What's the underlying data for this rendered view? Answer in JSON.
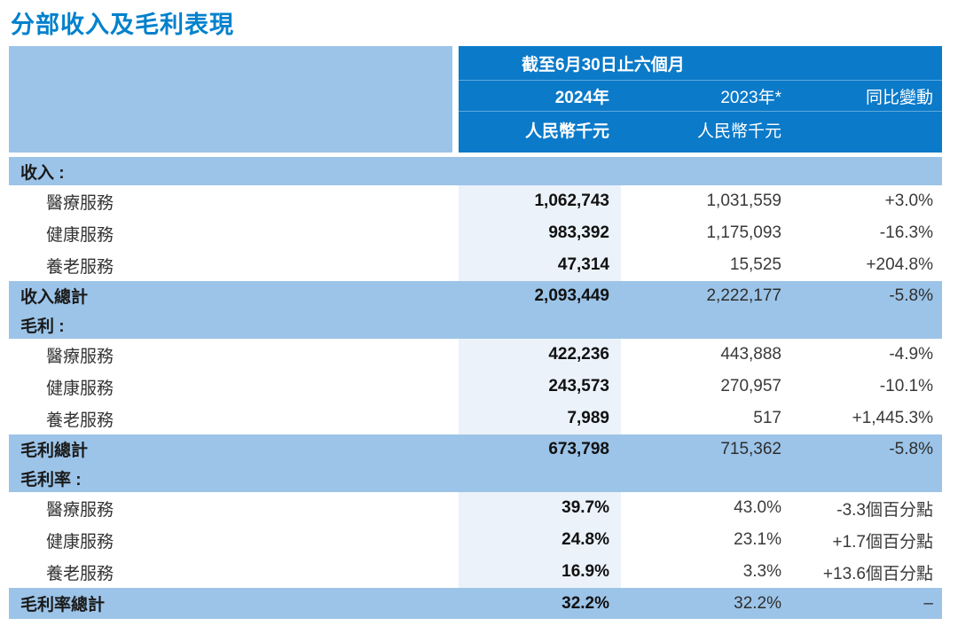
{
  "page": {
    "title": "分部收入及毛利表現"
  },
  "colors": {
    "title_blue": "#0081cc",
    "header_dark_blue": "#0b7ac9",
    "band_light_blue": "#9cc4e8",
    "column_tint": "#ebf2fa"
  },
  "table": {
    "header": {
      "period": "截至6月30日止六個月",
      "col_2024_year": "2024年",
      "col_2024_unit": "人民幣千元",
      "col_2023_year": "2023年*",
      "col_2023_unit": "人民幣千元",
      "col_change_label": "同比變動"
    },
    "rows": [
      {
        "type": "section",
        "label": "收入 :",
        "v2024": "",
        "v2023": "",
        "change": ""
      },
      {
        "type": "item",
        "label": "醫療服務",
        "v2024": "1,062,743",
        "v2023": "1,031,559",
        "change": "+3.0%"
      },
      {
        "type": "item",
        "label": "健康服務",
        "v2024": "983,392",
        "v2023": "1,175,093",
        "change": "-16.3%"
      },
      {
        "type": "item",
        "label": "養老服務",
        "v2024": "47,314",
        "v2023": "15,525",
        "change": "+204.8%"
      },
      {
        "type": "total",
        "label": "收入總計",
        "v2024": "2,093,449",
        "v2023": "2,222,177",
        "change": "-5.8%"
      },
      {
        "type": "section",
        "label": "毛利 :",
        "v2024": "",
        "v2023": "",
        "change": ""
      },
      {
        "type": "item",
        "label": "醫療服務",
        "v2024": "422,236",
        "v2023": "443,888",
        "change": "-4.9%"
      },
      {
        "type": "item",
        "label": "健康服務",
        "v2024": "243,573",
        "v2023": "270,957",
        "change": "-10.1%"
      },
      {
        "type": "item",
        "label": "養老服務",
        "v2024": "7,989",
        "v2023": "517",
        "change": "+1,445.3%"
      },
      {
        "type": "total",
        "label": "毛利總計",
        "v2024": "673,798",
        "v2023": "715,362",
        "change": "-5.8%"
      },
      {
        "type": "section",
        "label": "毛利率 :",
        "v2024": "",
        "v2023": "",
        "change": ""
      },
      {
        "type": "item",
        "label": "醫療服務",
        "v2024": "39.7%",
        "v2023": "43.0%",
        "change": "-3.3個百分點"
      },
      {
        "type": "item",
        "label": "健康服務",
        "v2024": "24.8%",
        "v2023": "23.1%",
        "change": "+1.7個百分點"
      },
      {
        "type": "item",
        "label": "養老服務",
        "v2024": "16.9%",
        "v2023": "3.3%",
        "change": "+13.6個百分點"
      },
      {
        "type": "total",
        "label": "毛利率總計",
        "v2024": "32.2%",
        "v2023": "32.2%",
        "change": "–"
      }
    ]
  }
}
